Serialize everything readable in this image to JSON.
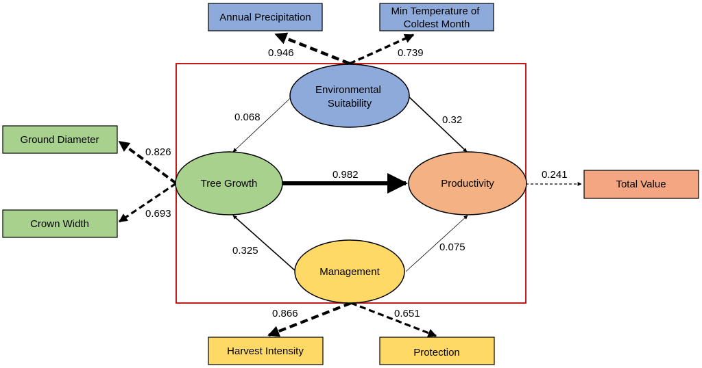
{
  "colors": {
    "blue": "#8eaadb",
    "green": "#a9d18e",
    "salmon": "#f4b183",
    "salmon_box": "#f4a582",
    "yellow": "#ffd966",
    "frame": "#c00000",
    "stroke": "#000000"
  },
  "latent": {
    "env": [
      "Environmental",
      "Suitability"
    ],
    "tree": "Tree Growth",
    "prod": "Productivity",
    "mgmt": "Management"
  },
  "indicators": {
    "annual_precip": "Annual Precipitation",
    "min_temp": [
      "Min Temperature of",
      "Coldest Month"
    ],
    "ground_diameter": "Ground Diameter",
    "crown_width": "Crown Width",
    "total_value": "Total Value",
    "harvest_intensity": "Harvest Intensity",
    "protection": "Protection"
  },
  "paths": {
    "env_tree": "0.068",
    "env_prod": "0.32",
    "tree_prod": "0.982",
    "mgmt_tree": "0.325",
    "mgmt_prod": "0.075"
  },
  "loadings": {
    "annual_precip": "0.946",
    "min_temp": "0.739",
    "ground_diameter": "0.826",
    "crown_width": "0.693",
    "total_value": "0.241",
    "harvest_intensity": "0.866",
    "protection": "0.651"
  }
}
